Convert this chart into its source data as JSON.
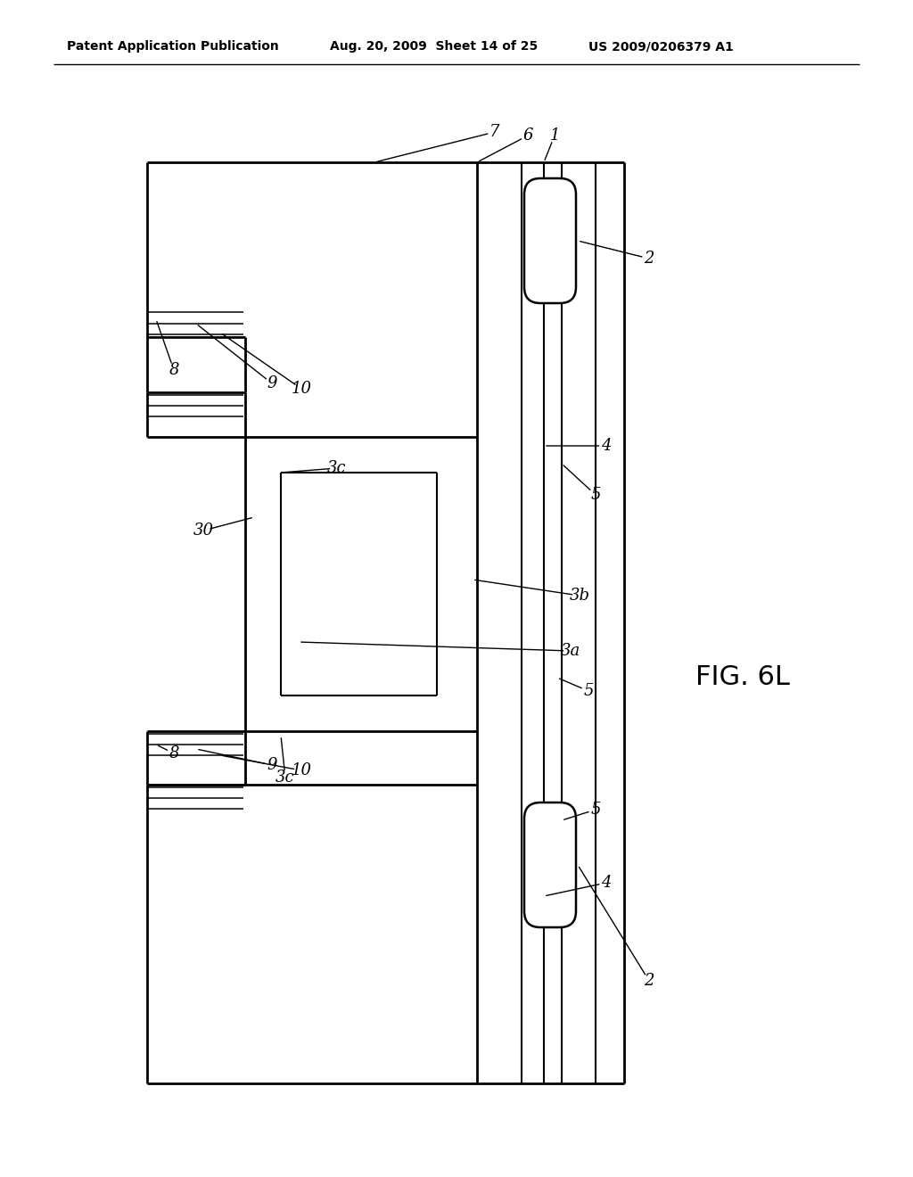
{
  "bg_color": "#ffffff",
  "line_color": "#000000",
  "header_left": "Patent Application Publication",
  "header_mid": "Aug. 20, 2009  Sheet 14 of 25",
  "header_right": "US 2009/0206379 A1",
  "fig_label": "FIG. 6L"
}
